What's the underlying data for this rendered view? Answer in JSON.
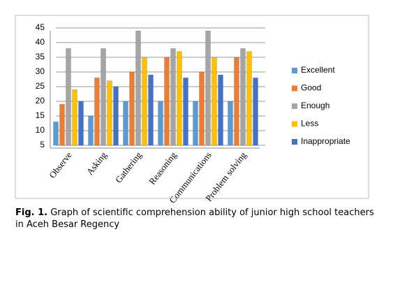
{
  "chart_data": {
    "type": "bar",
    "categories": [
      "Observe",
      "Asking",
      "Gathering",
      "Reasoning",
      "Communications",
      "Problem solving"
    ],
    "series": [
      {
        "name": "Excellent",
        "color": "#5b9bd5",
        "values": [
          13,
          15,
          20,
          20,
          20,
          20
        ]
      },
      {
        "name": "Good",
        "color": "#ed7d31",
        "values": [
          19,
          28,
          30,
          35,
          30,
          35
        ]
      },
      {
        "name": "Enough",
        "color": "#a5a5a5",
        "values": [
          38,
          38,
          44,
          38,
          44,
          38
        ]
      },
      {
        "name": "Less",
        "color": "#ffc000",
        "values": [
          24,
          27,
          35,
          37,
          35,
          37
        ]
      },
      {
        "name": "Inappropriate",
        "color": "#4472c4",
        "values": [
          20,
          25,
          29,
          28,
          29,
          28
        ]
      }
    ],
    "ylim": [
      5,
      45
    ],
    "yticks": [
      5,
      10,
      15,
      20,
      25,
      30,
      35,
      40,
      45
    ],
    "grid": true,
    "legend": "right"
  },
  "caption_label": "Fig. 1.",
  "caption_text": "Graph of scientific comprehension ability of junior high school teachers in Aceh Besar Regency"
}
